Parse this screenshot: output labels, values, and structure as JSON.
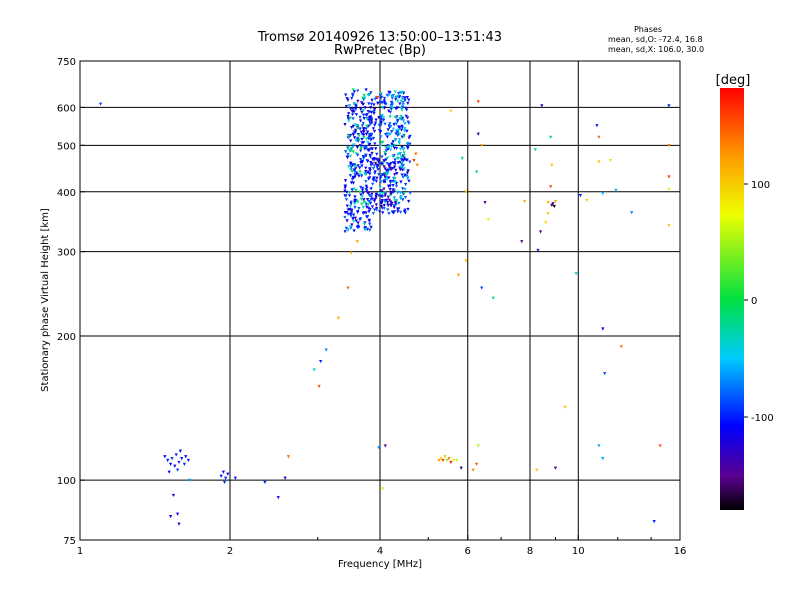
{
  "chart_data": {
    "type": "scatter",
    "title": "Tromsø 20140926 13:50:00–13:51:43",
    "subtitle": "RwPretec (Bp)",
    "xlabel": "Frequency [MHz]",
    "ylabel": "Stationary phase Virtual Height [km]",
    "x_scale": "log",
    "y_scale": "log",
    "xlim": [
      1,
      16
    ],
    "ylim": [
      75,
      750
    ],
    "x_ticks": [
      1,
      2,
      4,
      6,
      8,
      10,
      16
    ],
    "y_ticks": [
      75,
      100,
      200,
      300,
      400,
      500,
      600,
      750
    ],
    "grid": true,
    "stats": {
      "heading": "Phases",
      "line1": "mean, sd,O: -72.4, 16.8",
      "line2": "mean, sd,X: 106.0, 30.0"
    },
    "colorbar": {
      "label": "[deg]",
      "ticks": [
        "100",
        "0",
        "-100"
      ],
      "range": [
        -180,
        180
      ],
      "colormap": "rainbow"
    },
    "points": [
      {
        "x": 1.1,
        "y": 610,
        "phase": -90
      },
      {
        "x": 1.48,
        "y": 112,
        "phase": -105
      },
      {
        "x": 1.5,
        "y": 110,
        "phase": -100
      },
      {
        "x": 1.52,
        "y": 108,
        "phase": -110
      },
      {
        "x": 1.53,
        "y": 111,
        "phase": -95
      },
      {
        "x": 1.55,
        "y": 107,
        "phase": -108
      },
      {
        "x": 1.56,
        "y": 113,
        "phase": -102
      },
      {
        "x": 1.58,
        "y": 109,
        "phase": -98
      },
      {
        "x": 1.59,
        "y": 115,
        "phase": -112
      },
      {
        "x": 1.6,
        "y": 111,
        "phase": -104
      },
      {
        "x": 1.62,
        "y": 108,
        "phase": -96
      },
      {
        "x": 1.63,
        "y": 112,
        "phase": -110
      },
      {
        "x": 1.65,
        "y": 110,
        "phase": -100
      },
      {
        "x": 1.51,
        "y": 104,
        "phase": -115
      },
      {
        "x": 1.57,
        "y": 105,
        "phase": -92
      },
      {
        "x": 1.54,
        "y": 93,
        "phase": -120
      },
      {
        "x": 1.52,
        "y": 84,
        "phase": -118
      },
      {
        "x": 1.57,
        "y": 85,
        "phase": -110
      },
      {
        "x": 1.58,
        "y": 81,
        "phase": -125
      },
      {
        "x": 1.66,
        "y": 100,
        "phase": -60
      },
      {
        "x": 1.92,
        "y": 102,
        "phase": -105
      },
      {
        "x": 1.94,
        "y": 104,
        "phase": -108
      },
      {
        "x": 1.96,
        "y": 101,
        "phase": -100
      },
      {
        "x": 1.98,
        "y": 103,
        "phase": -112
      },
      {
        "x": 1.95,
        "y": 99,
        "phase": -95
      },
      {
        "x": 2.05,
        "y": 101,
        "phase": -102
      },
      {
        "x": 2.35,
        "y": 99,
        "phase": -100
      },
      {
        "x": 2.5,
        "y": 92,
        "phase": -110
      },
      {
        "x": 2.58,
        "y": 101,
        "phase": -115
      },
      {
        "x": 2.62,
        "y": 112,
        "phase": 140
      },
      {
        "x": 2.95,
        "y": 170,
        "phase": -40
      },
      {
        "x": 3.04,
        "y": 177,
        "phase": -100
      },
      {
        "x": 3.12,
        "y": 187,
        "phase": -70
      },
      {
        "x": 3.3,
        "y": 218,
        "phase": 110
      },
      {
        "x": 3.45,
        "y": 252,
        "phase": 140
      },
      {
        "x": 3.5,
        "y": 298,
        "phase": 115
      },
      {
        "x": 3.02,
        "y": 157,
        "phase": 150
      },
      {
        "x": 3.98,
        "y": 117,
        "phase": -70
      },
      {
        "x": 4.1,
        "y": 118,
        "phase": -150
      },
      {
        "x": 4.05,
        "y": 96,
        "phase": 60
      },
      {
        "x": 5.25,
        "y": 110,
        "phase": 120
      },
      {
        "x": 5.3,
        "y": 111,
        "phase": 90
      },
      {
        "x": 5.35,
        "y": 110,
        "phase": 160
      },
      {
        "x": 5.4,
        "y": 112,
        "phase": 100
      },
      {
        "x": 5.45,
        "y": 110,
        "phase": 40
      },
      {
        "x": 5.5,
        "y": 111,
        "phase": 130
      },
      {
        "x": 5.55,
        "y": 109,
        "phase": 170
      },
      {
        "x": 5.62,
        "y": 110,
        "phase": 80
      },
      {
        "x": 5.7,
        "y": 110,
        "phase": 60
      },
      {
        "x": 5.82,
        "y": 106,
        "phase": -160
      },
      {
        "x": 6.15,
        "y": 105,
        "phase": 130
      },
      {
        "x": 6.25,
        "y": 108,
        "phase": 150
      },
      {
        "x": 6.3,
        "y": 118,
        "phase": 50
      },
      {
        "x": 6.3,
        "y": 617,
        "phase": 160
      },
      {
        "x": 6.3,
        "y": 528,
        "phase": -140
      },
      {
        "x": 6.4,
        "y": 500,
        "phase": 110
      },
      {
        "x": 6.25,
        "y": 440,
        "phase": -10
      },
      {
        "x": 6.5,
        "y": 380,
        "phase": -150
      },
      {
        "x": 6.4,
        "y": 252,
        "phase": -90
      },
      {
        "x": 5.85,
        "y": 470,
        "phase": -20
      },
      {
        "x": 5.95,
        "y": 400,
        "phase": 100
      },
      {
        "x": 5.95,
        "y": 287,
        "phase": 100
      },
      {
        "x": 5.75,
        "y": 268,
        "phase": 120
      },
      {
        "x": 6.6,
        "y": 350,
        "phase": 80
      },
      {
        "x": 6.75,
        "y": 240,
        "phase": -30
      },
      {
        "x": 5.55,
        "y": 590,
        "phase": 100
      },
      {
        "x": 7.8,
        "y": 382,
        "phase": 110
      },
      {
        "x": 7.7,
        "y": 315,
        "phase": -150
      },
      {
        "x": 8.2,
        "y": 490,
        "phase": -30
      },
      {
        "x": 8.3,
        "y": 302,
        "phase": -140
      },
      {
        "x": 8.45,
        "y": 605,
        "phase": -120
      },
      {
        "x": 8.4,
        "y": 330,
        "phase": -150
      },
      {
        "x": 8.6,
        "y": 345,
        "phase": 90
      },
      {
        "x": 8.7,
        "y": 380,
        "phase": 110
      },
      {
        "x": 8.8,
        "y": 410,
        "phase": 150
      },
      {
        "x": 8.85,
        "y": 375,
        "phase": -170
      },
      {
        "x": 8.9,
        "y": 378,
        "phase": -150
      },
      {
        "x": 8.95,
        "y": 373,
        "phase": -175
      },
      {
        "x": 9.0,
        "y": 382,
        "phase": 120
      },
      {
        "x": 8.7,
        "y": 360,
        "phase": 100
      },
      {
        "x": 8.8,
        "y": 520,
        "phase": -20
      },
      {
        "x": 8.85,
        "y": 455,
        "phase": 100
      },
      {
        "x": 9.4,
        "y": 142,
        "phase": 100
      },
      {
        "x": 9.0,
        "y": 106,
        "phase": -150
      },
      {
        "x": 8.25,
        "y": 105,
        "phase": 100
      },
      {
        "x": 9.9,
        "y": 270,
        "phase": -40
      },
      {
        "x": 10.1,
        "y": 393,
        "phase": -100
      },
      {
        "x": 10.4,
        "y": 384,
        "phase": 100
      },
      {
        "x": 10.9,
        "y": 550,
        "phase": -100
      },
      {
        "x": 11.0,
        "y": 520,
        "phase": 140
      },
      {
        "x": 11.0,
        "y": 462,
        "phase": 100
      },
      {
        "x": 11.2,
        "y": 397,
        "phase": -60
      },
      {
        "x": 11.2,
        "y": 207,
        "phase": -110
      },
      {
        "x": 11.3,
        "y": 167,
        "phase": -90
      },
      {
        "x": 11.0,
        "y": 118,
        "phase": -60
      },
      {
        "x": 11.2,
        "y": 111,
        "phase": -60
      },
      {
        "x": 11.6,
        "y": 465,
        "phase": 60
      },
      {
        "x": 11.9,
        "y": 403,
        "phase": -60
      },
      {
        "x": 12.2,
        "y": 190,
        "phase": 140
      },
      {
        "x": 12.8,
        "y": 362,
        "phase": -70
      },
      {
        "x": 14.2,
        "y": 82,
        "phase": -100
      },
      {
        "x": 14.6,
        "y": 118,
        "phase": 150
      },
      {
        "x": 15.2,
        "y": 605,
        "phase": -100
      },
      {
        "x": 15.2,
        "y": 500,
        "phase": 130
      },
      {
        "x": 15.2,
        "y": 430,
        "phase": 160
      },
      {
        "x": 15.2,
        "y": 405,
        "phase": 80
      },
      {
        "x": 15.2,
        "y": 340,
        "phase": 100
      },
      {
        "x": 4.68,
        "y": 465,
        "phase": 160
      },
      {
        "x": 4.72,
        "y": 480,
        "phase": 140
      },
      {
        "x": 4.75,
        "y": 455,
        "phase": 130
      },
      {
        "x": 3.6,
        "y": 315,
        "phase": 120
      },
      {
        "x": 3.95,
        "y": 630,
        "phase": 150
      }
    ],
    "clusters": [
      {
        "x_range": [
          3.4,
          3.85
        ],
        "y_range": [
          330,
          655
        ],
        "phase": -105,
        "count": 260
      },
      {
        "x_range": [
          3.45,
          3.8
        ],
        "y_range": [
          330,
          655
        ],
        "phase": -25,
        "count": 60
      },
      {
        "x_range": [
          3.8,
          4.6
        ],
        "y_range": [
          360,
          650
        ],
        "phase": -100,
        "count": 300
      },
      {
        "x_range": [
          4.0,
          4.55
        ],
        "y_range": [
          380,
          650
        ],
        "phase": -40,
        "count": 100
      },
      {
        "x_range": [
          3.9,
          4.3
        ],
        "y_range": [
          370,
          470
        ],
        "phase": -130,
        "count": 50
      }
    ]
  }
}
